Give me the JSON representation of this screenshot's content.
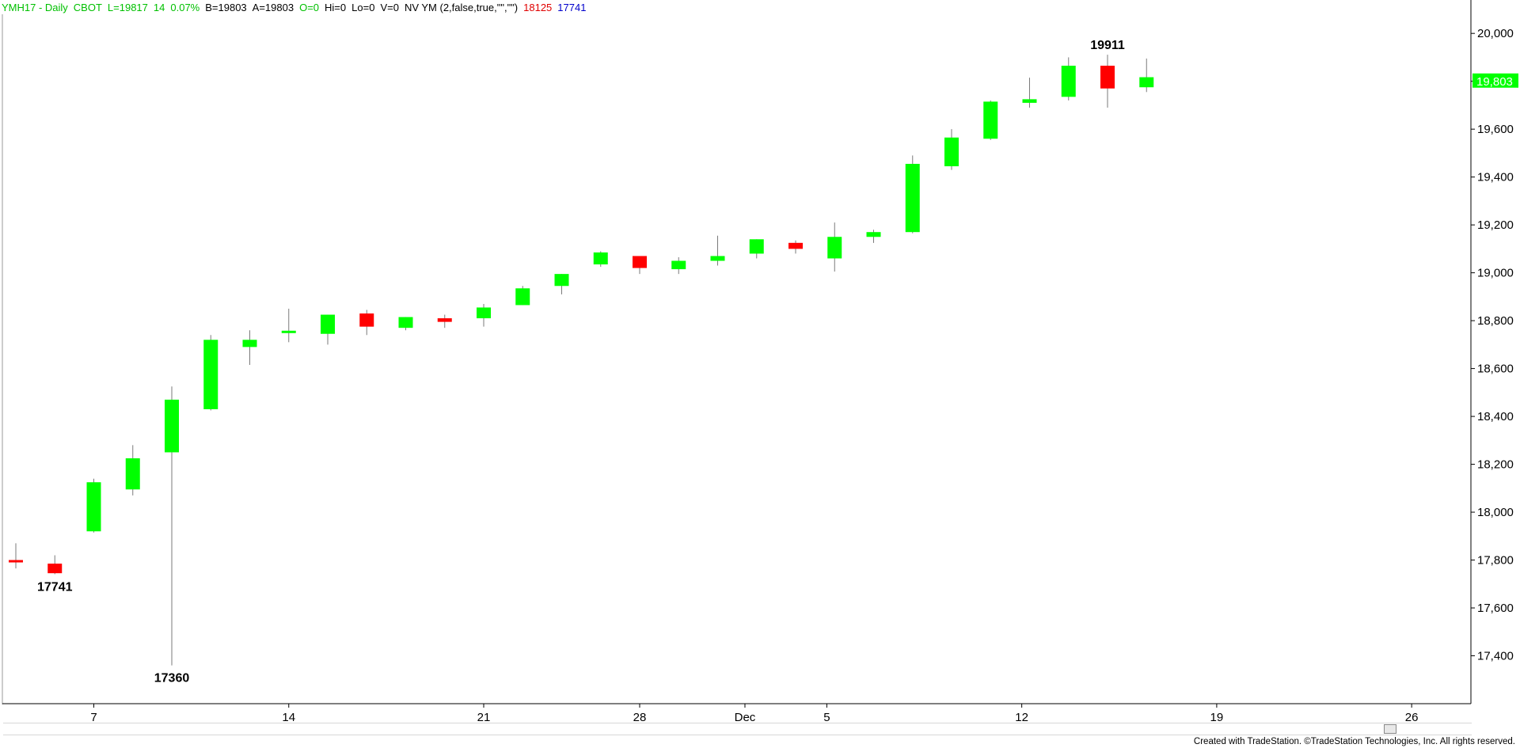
{
  "header": {
    "symbol": "YMH17 - Daily",
    "exchange": "CBOT",
    "last": "L=19817",
    "change": "14",
    "pct": "0.07%",
    "bid": "B=19803",
    "ask": "A=19803",
    "open": "O=0",
    "hi": "Hi=0",
    "lo": "Lo=0",
    "vol": "V=0",
    "study": "NV YM (2,false,true,\"\",\"\")",
    "study_val1": "18125",
    "study_val2": "17741",
    "colors": {
      "symbol": "#00c000",
      "ohlc": "#000000",
      "study": "#000000",
      "val1": "#e00000",
      "val2": "#0000cc"
    }
  },
  "price_label": "19,803",
  "footer": {
    "credit": "Created with TradeStation. ©TradeStation Technologies, Inc. All rights reserved."
  },
  "chart_data": {
    "type": "candlestick",
    "up_color": "#00ff00",
    "down_color": "#ff0000",
    "ylim": [
      17200,
      20080
    ],
    "y_ticks": [
      17400,
      17600,
      17800,
      18000,
      18200,
      18400,
      18600,
      18800,
      19000,
      19200,
      19400,
      19600,
      19800,
      20000
    ],
    "y_tick_labels": [
      "17,400",
      "17,600",
      "17,800",
      "18,000",
      "18,200",
      "18,400",
      "18,600",
      "18,800",
      "19,000",
      "19,200",
      "19,400",
      "19,600",
      "19,800",
      "20,000"
    ],
    "x_labels": [
      {
        "bar": 2.0,
        "label": "7"
      },
      {
        "bar": 7.0,
        "label": "14"
      },
      {
        "bar": 12.0,
        "label": "21"
      },
      {
        "bar": 16.0,
        "label": "28"
      },
      {
        "bar": 18.7,
        "label": "Dec"
      },
      {
        "bar": 20.8,
        "label": "5"
      },
      {
        "bar": 25.8,
        "label": "12"
      },
      {
        "bar": 30.8,
        "label": "19"
      },
      {
        "bar": 35.8,
        "label": "26"
      }
    ],
    "grid": false,
    "bars": [
      {
        "o": 17800,
        "h": 17870,
        "l": 17765,
        "c": 17798
      },
      {
        "o": 17785,
        "h": 17820,
        "l": 17741,
        "c": 17745
      },
      {
        "o": 17920,
        "h": 18140,
        "l": 17915,
        "c": 18125
      },
      {
        "o": 18095,
        "h": 18280,
        "l": 18070,
        "c": 18225
      },
      {
        "o": 18250,
        "h": 18525,
        "l": 17360,
        "c": 18470
      },
      {
        "o": 18430,
        "h": 18740,
        "l": 18425,
        "c": 18720
      },
      {
        "o": 18690,
        "h": 18760,
        "l": 18615,
        "c": 18720
      },
      {
        "o": 18755,
        "h": 18850,
        "l": 18710,
        "c": 18758
      },
      {
        "o": 18745,
        "h": 18825,
        "l": 18700,
        "c": 18825
      },
      {
        "o": 18830,
        "h": 18845,
        "l": 18740,
        "c": 18775
      },
      {
        "o": 18770,
        "h": 18815,
        "l": 18760,
        "c": 18815
      },
      {
        "o": 18810,
        "h": 18825,
        "l": 18770,
        "c": 18795
      },
      {
        "o": 18810,
        "h": 18870,
        "l": 18775,
        "c": 18855
      },
      {
        "o": 18865,
        "h": 18945,
        "l": 18865,
        "c": 18935
      },
      {
        "o": 18945,
        "h": 18995,
        "l": 18910,
        "c": 18995
      },
      {
        "o": 19035,
        "h": 19090,
        "l": 19025,
        "c": 19085
      },
      {
        "o": 19070,
        "h": 19070,
        "l": 18995,
        "c": 19020
      },
      {
        "o": 19015,
        "h": 19065,
        "l": 18995,
        "c": 19050
      },
      {
        "o": 19050,
        "h": 19155,
        "l": 19030,
        "c": 19070
      },
      {
        "o": 19080,
        "h": 19140,
        "l": 19060,
        "c": 19140
      },
      {
        "o": 19125,
        "h": 19135,
        "l": 19080,
        "c": 19100
      },
      {
        "o": 19060,
        "h": 19210,
        "l": 19005,
        "c": 19150
      },
      {
        "o": 19150,
        "h": 19180,
        "l": 19125,
        "c": 19170
      },
      {
        "o": 19170,
        "h": 19490,
        "l": 19165,
        "c": 19455
      },
      {
        "o": 19445,
        "h": 19600,
        "l": 19430,
        "c": 19565
      },
      {
        "o": 19560,
        "h": 19720,
        "l": 19555,
        "c": 19715
      },
      {
        "o": 19710,
        "h": 19815,
        "l": 19690,
        "c": 19725
      },
      {
        "o": 19735,
        "h": 19900,
        "l": 19720,
        "c": 19865
      },
      {
        "o": 19865,
        "h": 19911,
        "l": 19690,
        "c": 19770
      },
      {
        "o": 19775,
        "h": 19895,
        "l": 19755,
        "c": 19817
      }
    ],
    "annotations": [
      {
        "bar": 1,
        "value": 17741,
        "text": "17741",
        "pos": "below"
      },
      {
        "bar": 4,
        "value": 17360,
        "text": "17360",
        "pos": "below"
      },
      {
        "bar": 28,
        "value": 19911,
        "text": "19911",
        "pos": "above"
      }
    ]
  }
}
